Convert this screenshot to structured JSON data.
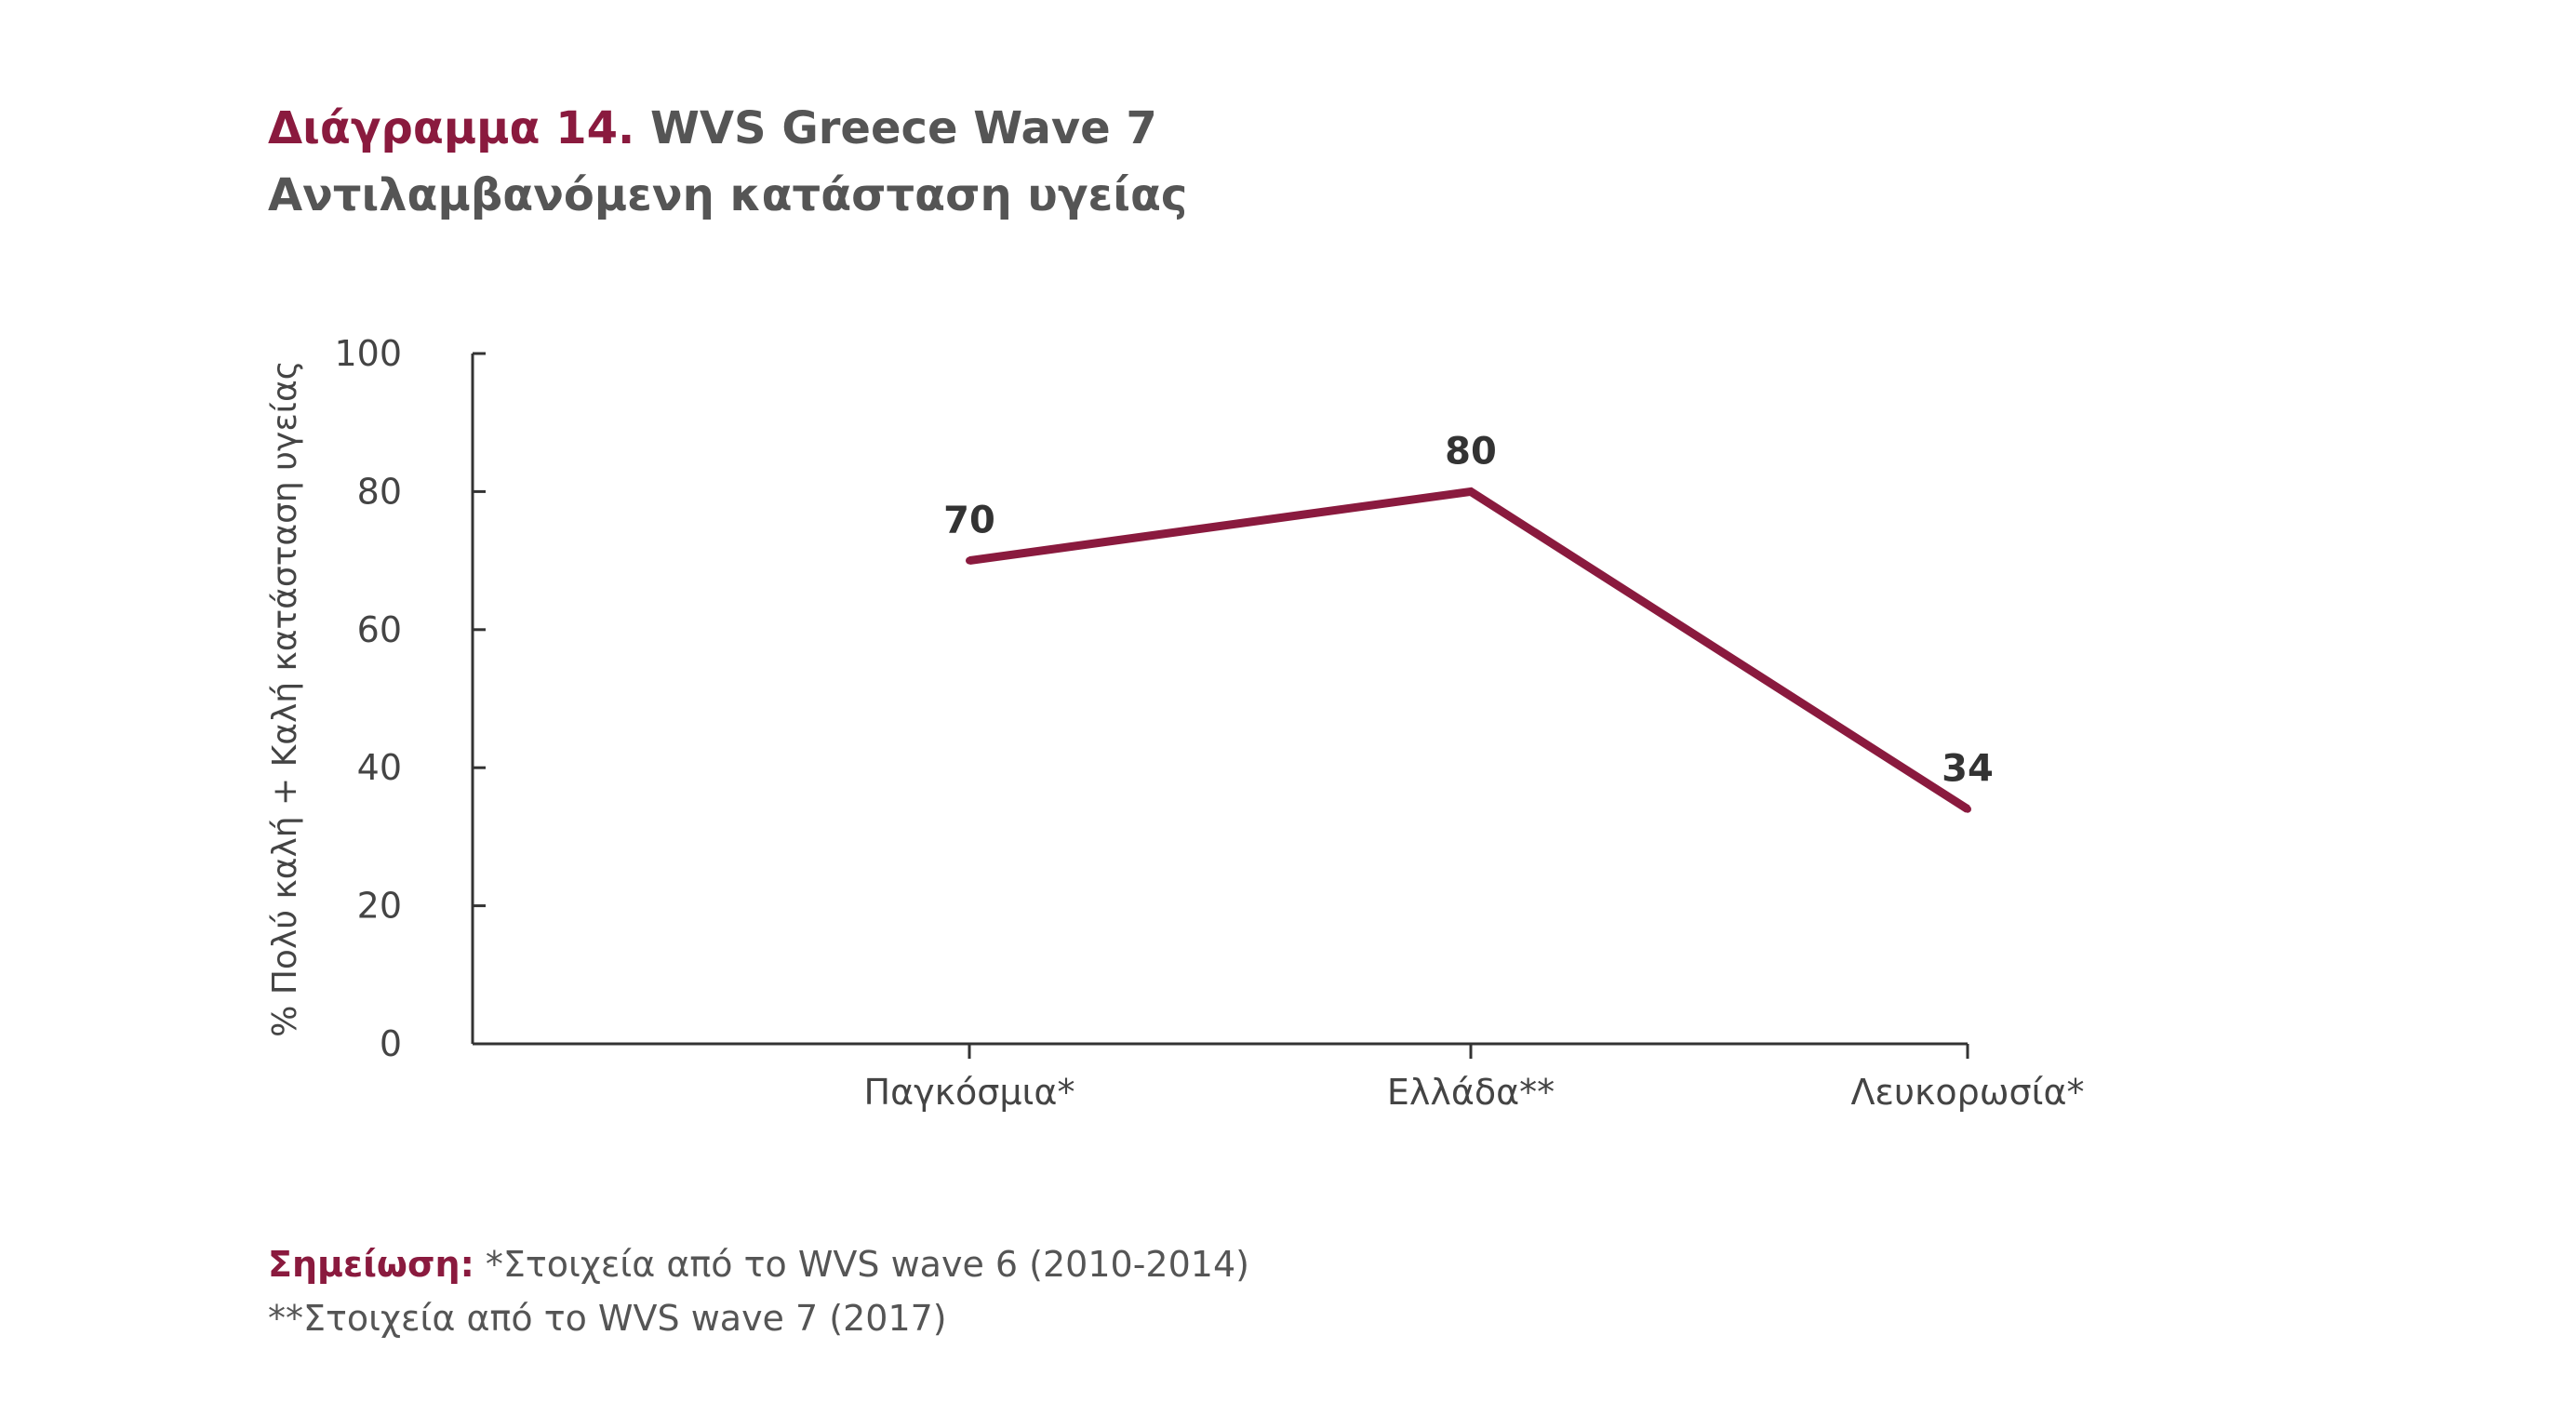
{
  "title": {
    "prefix": "Διάγραμμα 14.",
    "main": "WVS Greece Wave 7",
    "subtitle": "Αντιλαμβανόμενη κατάσταση υγείας"
  },
  "chart_data": {
    "type": "line",
    "categories": [
      "Παγκόσμια*",
      "Ελλάδα**",
      "Λευκορωσία*"
    ],
    "values": [
      70,
      80,
      34
    ],
    "data_labels": [
      "70",
      "80",
      "34"
    ],
    "ylabel": "% Πολύ καλή + Καλή κατάσταση υγείας",
    "xlabel": "",
    "ylim": [
      0,
      100
    ],
    "yticks": [
      0,
      20,
      40,
      60,
      80,
      100
    ],
    "ytick_labels": [
      "0",
      "20",
      "40",
      "60",
      "80",
      "100"
    ],
    "grid": false,
    "line_color": "#8a1a3e"
  },
  "note": {
    "label": "Σημείωση:",
    "line1": "*Στοιχεία από το WVS wave 6 (2010-2014)",
    "line2": "**Στοιχεία από το WVS wave 7 (2017)"
  },
  "colors": {
    "accent": "#8a1a3e",
    "text": "#555555",
    "axis": "#333333"
  }
}
